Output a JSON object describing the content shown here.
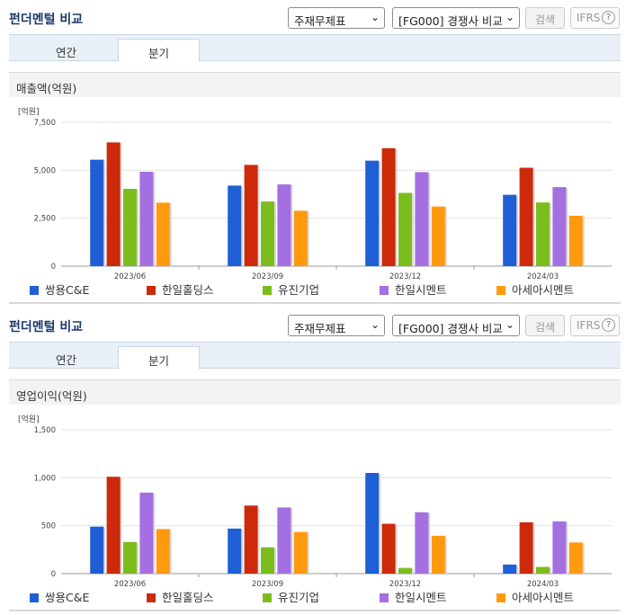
{
  "panels": [
    {
      "header": {
        "title": "펀더멘털 비교",
        "select_statement": "주재무제표",
        "select_compare": "[FG000] 경쟁사 비교",
        "search_label": "검색",
        "ifrs_label": "IFRS",
        "help_label": "?"
      },
      "tabs": {
        "annual": "연간",
        "quarterly": "분기"
      },
      "section_title": "매출액(억원)",
      "unit_label": "[억원]"
    },
    {
      "header": {
        "title": "펀더멘털 비교",
        "select_statement": "주재무제표",
        "select_compare": "[FG000] 경쟁사 비교",
        "search_label": "검색",
        "ifrs_label": "IFRS",
        "help_label": "?"
      },
      "tabs": {
        "annual": "연간",
        "quarterly": "분기"
      },
      "section_title": "영업이익(억원)",
      "unit_label": "[억원]"
    }
  ],
  "colors": [
    "#1f5fd6",
    "#cc2a0a",
    "#7cbd1e",
    "#a46fe0",
    "#ff9a0f"
  ],
  "chart_data": [
    {
      "type": "bar",
      "categories": [
        "2023/06",
        "2023/09",
        "2023/12",
        "2024/03"
      ],
      "ylim": [
        0,
        7500
      ],
      "yticks": [
        0,
        2500,
        5000,
        7500
      ],
      "ytick_labels": [
        "0",
        "2,500",
        "5,000",
        "7,500"
      ],
      "series": [
        {
          "name": "쌍용C&E",
          "values": [
            5550,
            4200,
            5500,
            3720
          ]
        },
        {
          "name": "한일홀딩스",
          "values": [
            6450,
            5280,
            6150,
            5130
          ]
        },
        {
          "name": "유진기업",
          "values": [
            4030,
            3370,
            3820,
            3320
          ]
        },
        {
          "name": "한일시멘트",
          "values": [
            4920,
            4260,
            4900,
            4120
          ]
        },
        {
          "name": "아세아시멘트",
          "values": [
            3310,
            2890,
            3110,
            2630
          ]
        }
      ]
    },
    {
      "type": "bar",
      "categories": [
        "2023/06",
        "2023/09",
        "2023/12",
        "2024/03"
      ],
      "ylim": [
        0,
        1500
      ],
      "yticks": [
        0,
        500,
        1000,
        1500
      ],
      "ytick_labels": [
        "0",
        "500",
        "1,000",
        "1,500"
      ],
      "series": [
        {
          "name": "쌍용C&E",
          "values": [
            490,
            470,
            1050,
            95
          ]
        },
        {
          "name": "한일홀딩스",
          "values": [
            1010,
            710,
            520,
            535
          ]
        },
        {
          "name": "유진기업",
          "values": [
            330,
            275,
            60,
            70
          ]
        },
        {
          "name": "한일시멘트",
          "values": [
            845,
            690,
            640,
            545
          ]
        },
        {
          "name": "아세아시멘트",
          "values": [
            465,
            435,
            395,
            325
          ]
        }
      ]
    }
  ]
}
